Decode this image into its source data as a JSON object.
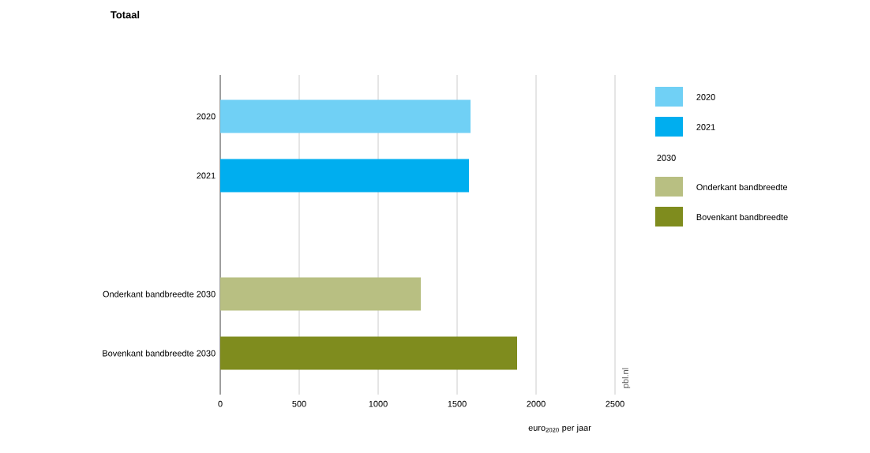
{
  "chart_data": {
    "type": "bar",
    "orientation": "horizontal",
    "title": "Totaal",
    "categories": [
      "2020",
      "2021",
      null,
      "Onderkant bandbreedte 2030",
      "Bovenkant bandbreedte 2030"
    ],
    "series": [
      {
        "name": "2020",
        "color": "#70d0f5",
        "values": [
          1585,
          null,
          null,
          null,
          null
        ]
      },
      {
        "name": "2021",
        "color": "#00aeef",
        "values": [
          null,
          1575,
          null,
          null,
          null
        ]
      },
      {
        "name": "Onderkant bandbreedte",
        "color": "#b8bf82",
        "values": [
          null,
          null,
          null,
          1270,
          null
        ]
      },
      {
        "name": "Bovenkant bandbreedte",
        "color": "#7f8c1e",
        "values": [
          null,
          null,
          null,
          null,
          1880
        ]
      }
    ],
    "xlabel": "euro$_{2020}$ per jaar",
    "xlim": [
      0,
      2500
    ],
    "xticks": [
      0,
      500,
      1000,
      1500,
      2000,
      2500
    ],
    "grid": "x",
    "legend": "right",
    "annotations": [
      "2030",
      "pbl.nl"
    ]
  }
}
